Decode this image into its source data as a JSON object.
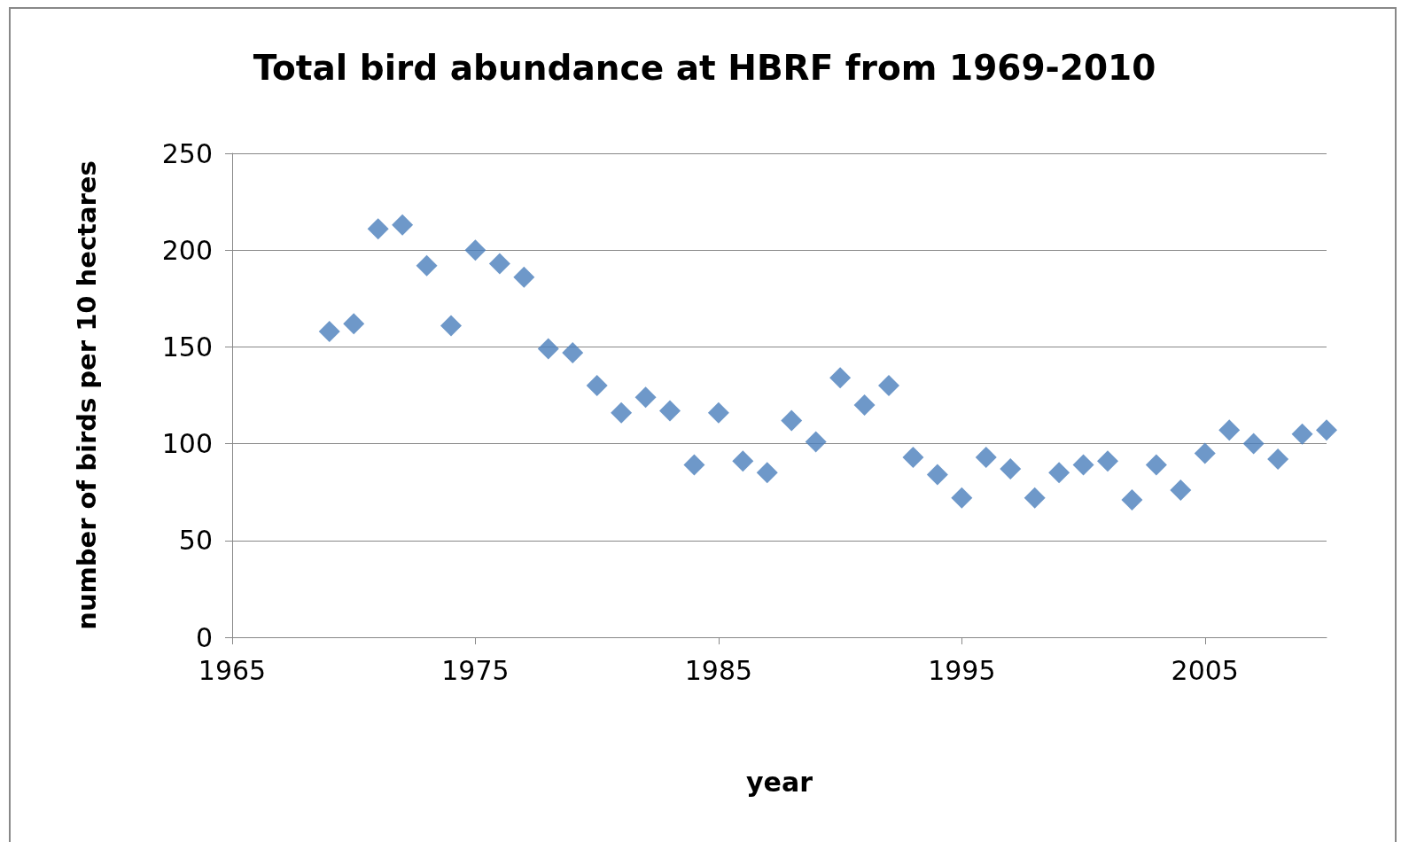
{
  "chart_data": {
    "type": "scatter",
    "title": "Total bird abundance at HBRF from 1969-2010",
    "xlabel": "year",
    "ylabel": "number of birds per 10 hectares",
    "x": [
      1969,
      1970,
      1971,
      1972,
      1973,
      1974,
      1975,
      1976,
      1977,
      1978,
      1979,
      1980,
      1981,
      1982,
      1983,
      1984,
      1985,
      1986,
      1987,
      1988,
      1989,
      1990,
      1991,
      1992,
      1993,
      1994,
      1995,
      1996,
      1997,
      1998,
      1999,
      2000,
      2001,
      2002,
      2003,
      2004,
      2005,
      2006,
      2007,
      2008,
      2009,
      2010
    ],
    "series": [
      {
        "color": "#4a7ebb",
        "values": [
          158,
          162,
          211,
          213,
          192,
          161,
          200,
          193,
          186,
          149,
          147,
          130,
          116,
          124,
          117,
          89,
          116,
          91,
          85,
          112,
          101,
          134,
          120,
          130,
          93,
          84,
          72,
          93,
          87,
          72,
          85,
          89,
          91,
          71,
          89,
          76,
          95,
          107,
          100,
          92,
          105,
          107
        ]
      }
    ],
    "xlim": [
      1965,
      2010
    ],
    "xticks": [
      1965,
      1975,
      1985,
      1995,
      2005
    ],
    "ylim": [
      0,
      250
    ],
    "yticks": [
      0,
      50,
      100,
      150,
      200,
      250
    ],
    "grid": "y",
    "marker": "diamond"
  }
}
